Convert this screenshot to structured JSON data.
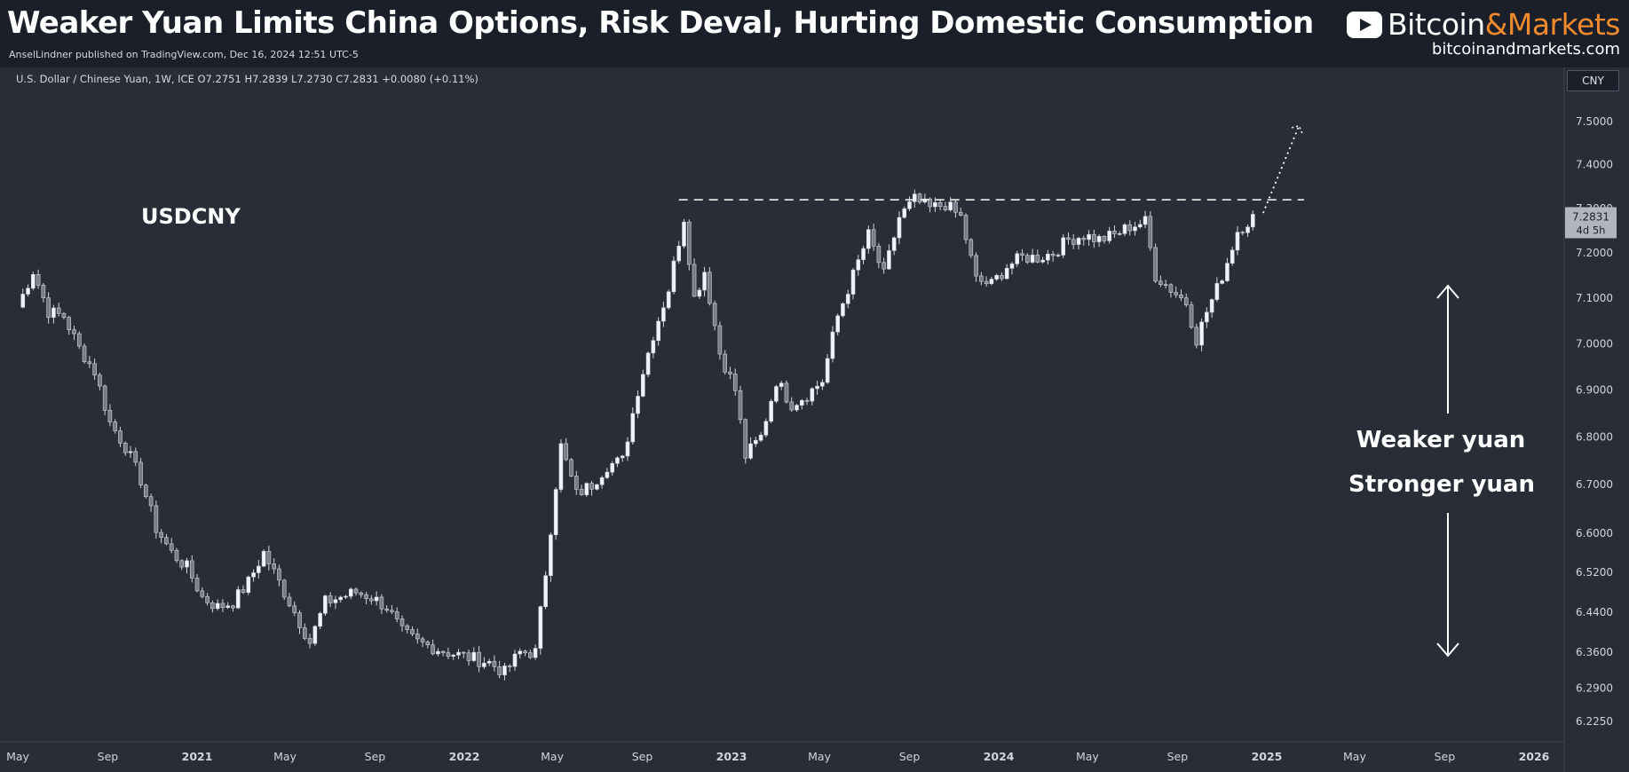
{
  "header": {
    "title": "Weaker Yuan Limits China Options, Risk Deval, Hurting Domestic Consumption",
    "publisher": "AnselLindner published on TradingView.com, Dec 16, 2024 12:51 UTC-5",
    "brand": {
      "name_part1": "Bitcoin",
      "name_part2": "&Markets",
      "url": "bitcoinandmarkets.com",
      "accent_color": "#f08a2c"
    }
  },
  "symbol_info": "U.S. Dollar / Chinese Yuan, 1W, ICE  O7.2751  H7.2839  L7.2730  C7.2831  +0.0080 (+0.11%)",
  "currency": "CNY",
  "chart_data": {
    "type": "candlestick",
    "symbol": "USDCNY",
    "interval": "1W",
    "price_label": "7.2831",
    "countdown_label": "4d 5h",
    "y_axis": {
      "ticks": [
        6.225,
        6.29,
        6.36,
        6.44,
        6.52,
        6.6,
        6.7,
        6.8,
        6.9,
        7.0,
        7.1,
        7.2,
        7.3,
        7.4,
        7.5
      ],
      "tick_labels": [
        "6.2250",
        "6.2900",
        "6.3600",
        "6.4400",
        "6.5200",
        "6.6000",
        "6.7000",
        "6.8000",
        "6.9000",
        "7.0000",
        "7.1000",
        "7.2000",
        "7.3000",
        "7.4000",
        "7.5000"
      ],
      "scale": "log",
      "range": [
        6.2,
        7.6
      ]
    },
    "x_axis": {
      "labels": [
        "May",
        "Sep",
        "2021",
        "May",
        "Sep",
        "2022",
        "May",
        "Sep",
        "2023",
        "May",
        "Sep",
        "2024",
        "May",
        "Sep",
        "2025",
        "May",
        "Sep",
        "2026"
      ],
      "bold": [
        false,
        false,
        true,
        false,
        false,
        true,
        false,
        false,
        true,
        false,
        false,
        true,
        false,
        false,
        true,
        false,
        false,
        true
      ],
      "dates": [
        "2020-05-01",
        "2020-09-01",
        "2021-01-01",
        "2021-05-01",
        "2021-09-01",
        "2022-01-01",
        "2022-05-01",
        "2022-09-01",
        "2023-01-01",
        "2023-05-01",
        "2023-09-01",
        "2024-01-01",
        "2024-05-01",
        "2024-09-01",
        "2025-01-01",
        "2025-05-01",
        "2025-09-01",
        "2026-01-01"
      ],
      "range": [
        "2020-05-01",
        "2026-01-01"
      ]
    },
    "series": [
      {
        "anchors": [
          [
            "2020-05-01",
            7.08
          ],
          [
            "2020-05-22",
            7.16
          ],
          [
            "2020-06-12",
            7.07
          ],
          [
            "2020-07-03",
            7.06
          ],
          [
            "2020-07-24",
            6.99
          ],
          [
            "2020-08-14",
            6.94
          ],
          [
            "2020-09-04",
            6.83
          ],
          [
            "2020-09-25",
            6.78
          ],
          [
            "2020-10-16",
            6.71
          ],
          [
            "2020-11-06",
            6.61
          ],
          [
            "2020-11-27",
            6.56
          ],
          [
            "2020-12-18",
            6.53
          ],
          [
            "2021-01-08",
            6.47
          ],
          [
            "2021-01-29",
            6.45
          ],
          [
            "2021-02-19",
            6.46
          ],
          [
            "2021-03-12",
            6.5
          ],
          [
            "2021-04-02",
            6.56
          ],
          [
            "2021-04-23",
            6.5
          ],
          [
            "2021-05-14",
            6.44
          ],
          [
            "2021-06-04",
            6.38
          ],
          [
            "2021-06-25",
            6.46
          ],
          [
            "2021-07-16",
            6.47
          ],
          [
            "2021-08-06",
            6.48
          ],
          [
            "2021-08-27",
            6.47
          ],
          [
            "2021-09-17",
            6.45
          ],
          [
            "2021-10-08",
            6.4
          ],
          [
            "2021-10-29",
            6.38
          ],
          [
            "2021-11-19",
            6.37
          ],
          [
            "2021-12-10",
            6.36
          ],
          [
            "2022-01-07",
            6.35
          ],
          [
            "2022-02-04",
            6.34
          ],
          [
            "2022-02-25",
            6.32
          ],
          [
            "2022-03-18",
            6.36
          ],
          [
            "2022-04-08",
            6.36
          ],
          [
            "2022-04-22",
            6.52
          ],
          [
            "2022-05-06",
            6.7
          ],
          [
            "2022-05-13",
            6.78
          ],
          [
            "2022-06-03",
            6.68
          ],
          [
            "2022-06-24",
            6.7
          ],
          [
            "2022-07-15",
            6.74
          ],
          [
            "2022-08-05",
            6.75
          ],
          [
            "2022-08-26",
            6.9
          ],
          [
            "2022-09-16",
            7.02
          ],
          [
            "2022-10-07",
            7.12
          ],
          [
            "2022-10-28",
            7.28
          ],
          [
            "2022-11-11",
            7.1
          ],
          [
            "2022-11-25",
            7.16
          ],
          [
            "2022-12-16",
            6.98
          ],
          [
            "2023-01-06",
            6.9
          ],
          [
            "2023-01-20",
            6.76
          ],
          [
            "2023-02-10",
            6.8
          ],
          [
            "2023-03-03",
            6.92
          ],
          [
            "2023-03-24",
            6.87
          ],
          [
            "2023-04-14",
            6.89
          ],
          [
            "2023-05-05",
            6.92
          ],
          [
            "2023-05-26",
            7.06
          ],
          [
            "2023-06-16",
            7.15
          ],
          [
            "2023-07-07",
            7.24
          ],
          [
            "2023-07-28",
            7.15
          ],
          [
            "2023-08-18",
            7.28
          ],
          [
            "2023-09-08",
            7.32
          ],
          [
            "2023-09-29",
            7.3
          ],
          [
            "2023-10-20",
            7.31
          ],
          [
            "2023-11-10",
            7.28
          ],
          [
            "2023-12-01",
            7.14
          ],
          [
            "2023-12-22",
            7.13
          ],
          [
            "2024-01-12",
            7.17
          ],
          [
            "2024-02-02",
            7.19
          ],
          [
            "2024-02-23",
            7.19
          ],
          [
            "2024-03-15",
            7.2
          ],
          [
            "2024-04-05",
            7.23
          ],
          [
            "2024-04-26",
            7.24
          ],
          [
            "2024-05-17",
            7.23
          ],
          [
            "2024-06-07",
            7.24
          ],
          [
            "2024-06-28",
            7.26
          ],
          [
            "2024-07-19",
            7.27
          ],
          [
            "2024-08-02",
            7.15
          ],
          [
            "2024-08-23",
            7.12
          ],
          [
            "2024-09-13",
            7.09
          ],
          [
            "2024-09-27",
            7.01
          ],
          [
            "2024-10-11",
            7.07
          ],
          [
            "2024-10-25",
            7.12
          ],
          [
            "2024-11-08",
            7.18
          ],
          [
            "2024-11-22",
            7.25
          ],
          [
            "2024-12-13",
            7.28
          ]
        ]
      }
    ],
    "resistance_level": 7.32,
    "projection": {
      "from": [
        "2024-12-27",
        7.29
      ],
      "to": [
        "2025-02-14",
        7.49
      ]
    },
    "annotations": {
      "symbol": "USDCNY",
      "weaker": "Weaker yuan",
      "stronger": "Stronger yuan"
    }
  }
}
